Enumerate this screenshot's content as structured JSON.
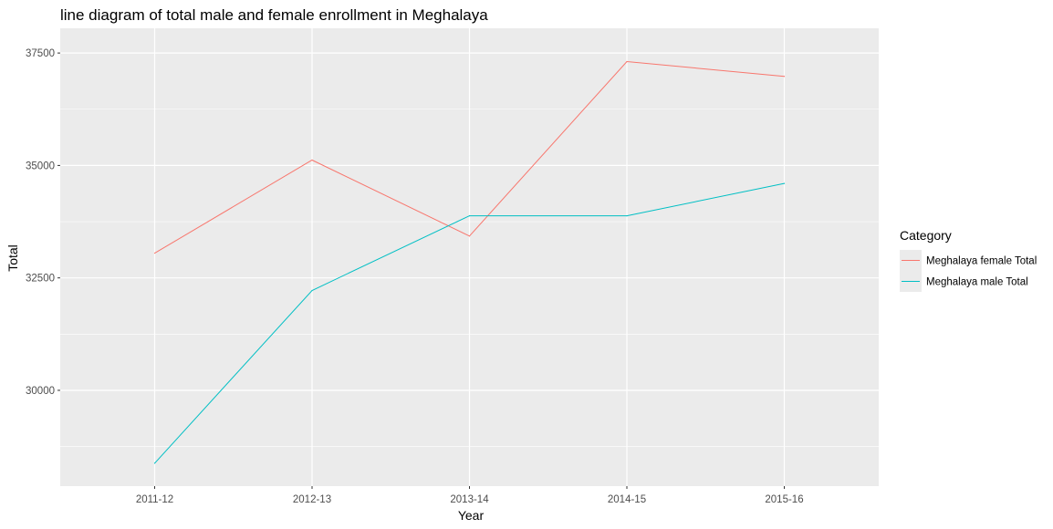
{
  "chart_data": {
    "type": "line",
    "title": "line diagram of total male and female enrollment in Meghalaya",
    "xlabel": "Year",
    "ylabel": "Total",
    "categories": [
      "2011-12",
      "2012-13",
      "2013-14",
      "2014-15",
      "2015-16"
    ],
    "y_ticks": [
      30000,
      32500,
      35000,
      37500
    ],
    "ylim": [
      27870,
      38050
    ],
    "grid": true,
    "legend": {
      "title": "Category",
      "position": "right"
    },
    "series": [
      {
        "name": "Meghalaya female Total",
        "color": "#F8766D",
        "values": [
          33050,
          35120,
          33430,
          37310,
          36980
        ]
      },
      {
        "name": "Meghalaya male Total",
        "color": "#00BFC4",
        "values": [
          28380,
          32220,
          33880,
          33880,
          34600
        ]
      }
    ]
  }
}
